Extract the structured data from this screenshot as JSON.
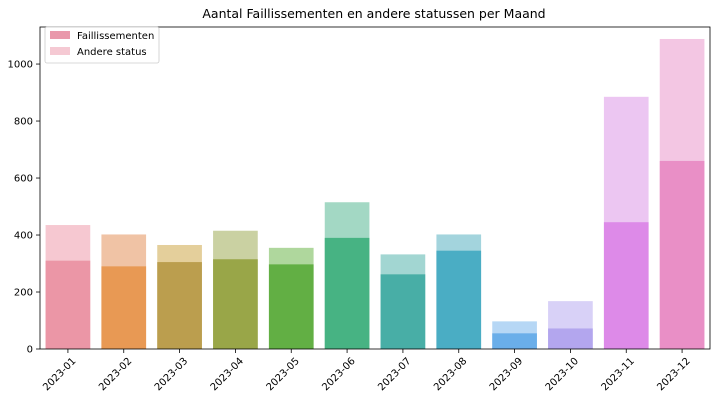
{
  "chart_data": {
    "type": "bar",
    "title": "Aantal Faillissementen en andere statussen per Maand",
    "xlabel": "",
    "ylabel": "",
    "categories": [
      "2023-01",
      "2023-02",
      "2023-03",
      "2023-04",
      "2023-05",
      "2023-06",
      "2023-07",
      "2023-08",
      "2023-09",
      "2023-10",
      "2023-11",
      "2023-12"
    ],
    "ylim": [
      0,
      1130
    ],
    "yticks": [
      0,
      200,
      400,
      600,
      800,
      1000
    ],
    "grid": false,
    "legend_position": "top-left",
    "series": [
      {
        "name": "Faillissementen",
        "values": [
          310,
          290,
          305,
          315,
          297,
          390,
          262,
          345,
          55,
          72,
          445,
          660
        ],
        "colors": [
          "#eb96a6",
          "#e89954",
          "#bb9e4e",
          "#99a648",
          "#62af44",
          "#47b383",
          "#48aea6",
          "#4aadc4",
          "#6aaee9",
          "#b3a6ee",
          "#dd8ae8",
          "#e98fc6"
        ],
        "legend_color": "#e999ab"
      },
      {
        "name": "Andere status",
        "values": [
          435,
          402,
          365,
          415,
          355,
          515,
          332,
          402,
          97,
          168,
          885,
          1088
        ],
        "colors": [
          "#f6c8d1",
          "#f0c3a5",
          "#e4cf9b",
          "#cad1a2",
          "#afd79d",
          "#a3d8c4",
          "#a2d6d2",
          "#a3d4dd",
          "#b6d7f5",
          "#d8d1f7",
          "#ecc6f2",
          "#f3c6e3"
        ],
        "legend_color": "#f5c9d3"
      }
    ]
  }
}
